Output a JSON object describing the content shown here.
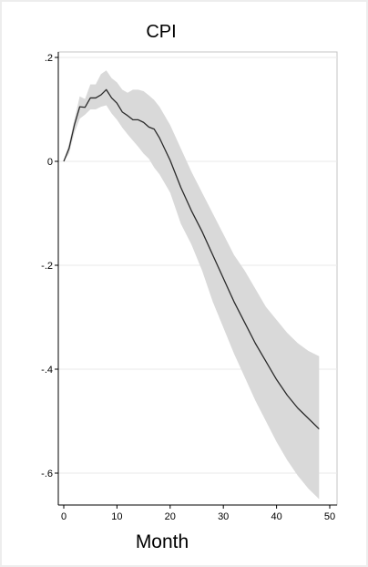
{
  "chart_data": {
    "type": "line",
    "title": "CPI",
    "xlabel": "Month",
    "ylabel": "",
    "xlim": [
      -1,
      50
    ],
    "ylim": [
      -0.645,
      0.205
    ],
    "xticks": [
      0,
      10,
      20,
      30,
      40,
      50
    ],
    "xtick_labels": [
      "0",
      "10",
      "20",
      "30",
      "40",
      "50"
    ],
    "yticks": [
      0.2,
      0,
      -0.2,
      -0.4,
      -0.6
    ],
    "ytick_labels": [
      ".2",
      "0",
      "-.2",
      "-.4",
      "-.6"
    ],
    "grid": true,
    "legend": "none",
    "series": [
      {
        "x": [
          0,
          1,
          2,
          3,
          4,
          5,
          6,
          7,
          8,
          9,
          10,
          11,
          12,
          13,
          14,
          15,
          16,
          17,
          18,
          20,
          22,
          24,
          26,
          28,
          30,
          32,
          34,
          36,
          38,
          40,
          42,
          44,
          46,
          48
        ],
        "y": [
          0,
          0.025,
          0.07,
          0.105,
          0.104,
          0.122,
          0.122,
          0.128,
          0.138,
          0.122,
          0.112,
          0.095,
          0.088,
          0.08,
          0.08,
          0.075,
          0.066,
          0.062,
          0.045,
          0.002,
          -0.05,
          -0.095,
          -0.135,
          -0.18,
          -0.225,
          -0.27,
          -0.31,
          -0.35,
          -0.385,
          -0.42,
          -0.45,
          -0.475,
          -0.495,
          -0.515
        ],
        "lower": [
          0,
          0.015,
          0.055,
          0.082,
          0.09,
          0.1,
          0.1,
          0.105,
          0.108,
          0.092,
          0.08,
          0.065,
          0.052,
          0.04,
          0.028,
          0.015,
          0.005,
          -0.012,
          -0.025,
          -0.06,
          -0.12,
          -0.16,
          -0.21,
          -0.27,
          -0.32,
          -0.37,
          -0.415,
          -0.46,
          -0.5,
          -0.54,
          -0.575,
          -0.605,
          -0.63,
          -0.65
        ],
        "upper": [
          0,
          0.035,
          0.08,
          0.125,
          0.12,
          0.148,
          0.148,
          0.168,
          0.175,
          0.16,
          0.152,
          0.138,
          0.132,
          0.138,
          0.138,
          0.135,
          0.127,
          0.118,
          0.105,
          0.07,
          0.025,
          -0.02,
          -0.06,
          -0.1,
          -0.14,
          -0.18,
          -0.21,
          -0.245,
          -0.28,
          -0.305,
          -0.33,
          -0.35,
          -0.365,
          -0.375
        ],
        "line_color": "#2a2a2a",
        "band_color": "#d9d9d9"
      }
    ]
  }
}
